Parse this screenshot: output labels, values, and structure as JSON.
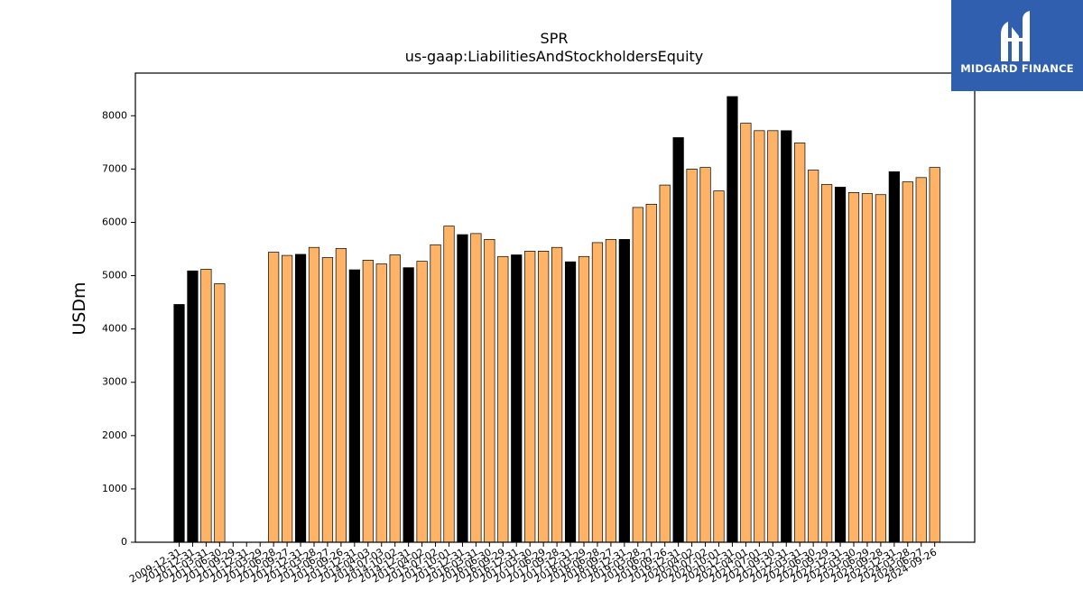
{
  "chart_data": {
    "type": "bar",
    "title": "SPR",
    "subtitle": "us-gaap:LiabilitiesAndStockholdersEquity",
    "xlabel": "",
    "ylabel": "USDm",
    "ylim": [
      0,
      8800
    ],
    "yticks": [
      0,
      1000,
      2000,
      3000,
      4000,
      5000,
      6000,
      7000,
      8000
    ],
    "categories": [
      "2009-12-31",
      "2010-12-31",
      "2011-03-31",
      "2011-06-30",
      "2011-09-29",
      "2011-12-31",
      "2012-03-29",
      "2012-06-28",
      "2012-09-27",
      "2012-12-31",
      "2013-03-28",
      "2013-06-27",
      "2013-09-26",
      "2013-12-31",
      "2014-04-03",
      "2014-07-03",
      "2014-10-02",
      "2014-12-31",
      "2015-04-02",
      "2015-07-02",
      "2015-10-01",
      "2015-12-31",
      "2016-03-31",
      "2016-06-30",
      "2016-09-29",
      "2016-12-31",
      "2017-03-30",
      "2017-06-29",
      "2017-09-28",
      "2017-12-31",
      "2018-03-29",
      "2018-06-28",
      "2018-09-27",
      "2018-12-31",
      "2019-03-28",
      "2019-06-27",
      "2019-09-26",
      "2019-12-31",
      "2020-04-02",
      "2020-07-02",
      "2020-10-01",
      "2020-12-31",
      "2021-04-01",
      "2021-07-01",
      "2021-09-30",
      "2021-12-31",
      "2022-03-31",
      "2022-06-30",
      "2022-09-29",
      "2022-12-31",
      "2023-03-30",
      "2023-06-29",
      "2023-09-28",
      "2023-12-31",
      "2024-03-28",
      "2024-06-27",
      "2024-09-26"
    ],
    "values": [
      4460,
      5090,
      5120,
      4850,
      0,
      0,
      0,
      5440,
      5380,
      5400,
      5530,
      5340,
      5510,
      5110,
      5290,
      5220,
      5390,
      5150,
      5270,
      5580,
      5930,
      5770,
      5790,
      5680,
      5360,
      5390,
      5460,
      5460,
      5530,
      5260,
      5360,
      5620,
      5680,
      5680,
      6280,
      6340,
      6700,
      7590,
      7000,
      7030,
      6590,
      8360,
      7860,
      7720,
      7720,
      7720,
      7490,
      6980,
      6710,
      6660,
      6560,
      6540,
      6520,
      6950,
      6760,
      6840,
      7030
    ],
    "annual": [
      true,
      true,
      false,
      false,
      false,
      false,
      false,
      false,
      false,
      true,
      false,
      false,
      false,
      true,
      false,
      false,
      false,
      true,
      false,
      false,
      false,
      true,
      false,
      false,
      false,
      true,
      false,
      false,
      false,
      true,
      false,
      false,
      false,
      true,
      false,
      false,
      false,
      true,
      false,
      false,
      false,
      true,
      false,
      false,
      false,
      true,
      false,
      false,
      false,
      true,
      false,
      false,
      false,
      true,
      false,
      false,
      false
    ],
    "colors": {
      "annual": "#000000",
      "quarterly": "#ffb366",
      "edge": "#000000"
    },
    "grid": false,
    "legend": "none"
  },
  "logo": {
    "name": "MIDGARD FINANCE",
    "bg": "#2f5fae"
  }
}
